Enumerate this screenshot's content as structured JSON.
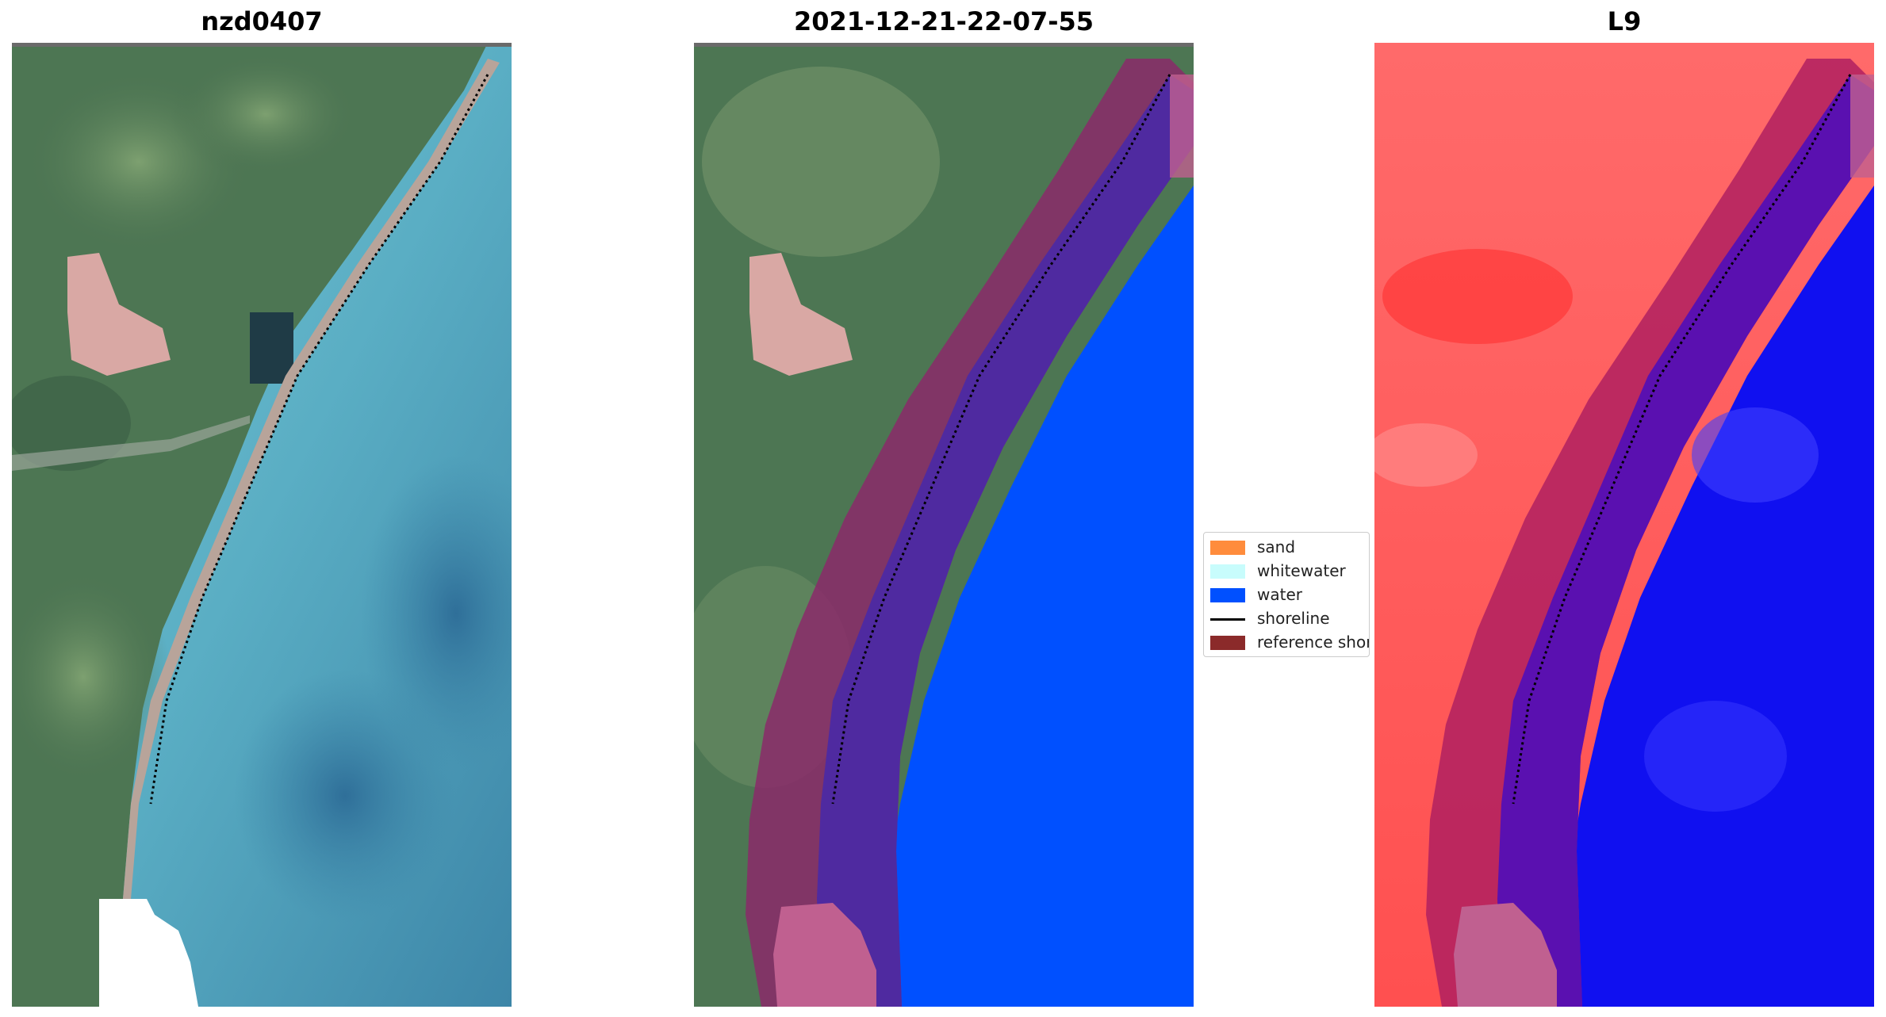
{
  "panels": [
    {
      "title": "nzd0407"
    },
    {
      "title": "2021-12-21-22-07-55"
    },
    {
      "title": "L9"
    }
  ],
  "legend": {
    "items": [
      {
        "label": "sand",
        "color": "#ff8c3c",
        "kind": "patch"
      },
      {
        "label": "whitewater",
        "color": "#c8fcfc",
        "kind": "patch"
      },
      {
        "label": "water",
        "color": "#0050ff",
        "kind": "patch"
      },
      {
        "label": "shoreline",
        "color": "#000000",
        "kind": "line"
      },
      {
        "label": "reference shoreline buffer",
        "color": "#8b2a2a",
        "kind": "patch"
      }
    ]
  },
  "colors": {
    "land": "#4f7a55",
    "sea": "#5cb4c8",
    "water_class": "#0050ff",
    "buffer": "#8b2a5a",
    "index_land": "#ff4a4a",
    "index_water": "#1010ff"
  }
}
